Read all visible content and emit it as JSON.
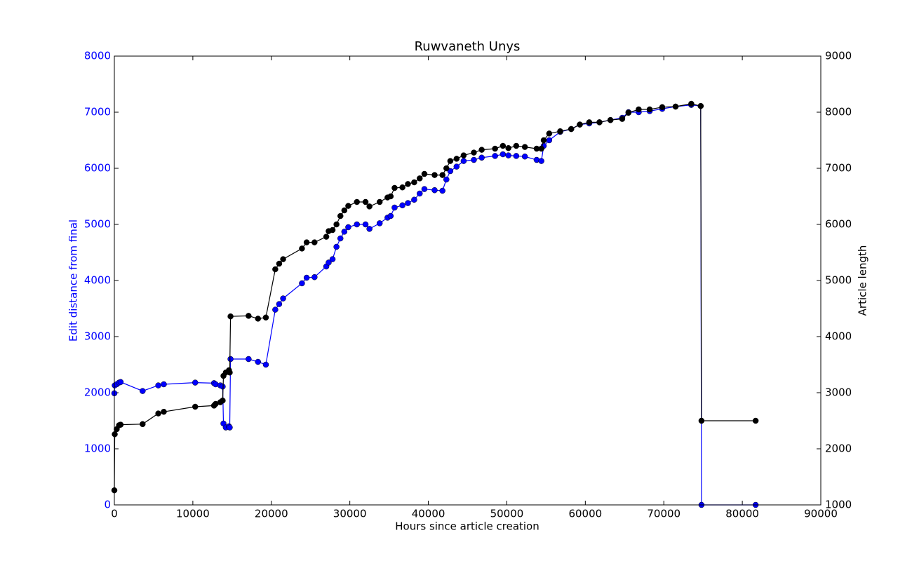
{
  "chart_data": {
    "type": "line",
    "title": "Ruwvaneth Unys",
    "xlabel": "Hours since article creation",
    "ylabel": "Edit distance from final",
    "y2label": "Article length",
    "x": [
      0,
      50,
      300,
      600,
      800,
      3600,
      5600,
      6300,
      10300,
      12700,
      12900,
      13500,
      13800,
      13900,
      14200,
      14600,
      14700,
      14800,
      17100,
      18300,
      19300,
      20500,
      21000,
      21500,
      23900,
      24500,
      25500,
      27000,
      27300,
      27800,
      28300,
      28800,
      29300,
      29800,
      30900,
      32000,
      32500,
      33800,
      34800,
      35200,
      35700,
      36700,
      37400,
      38200,
      38900,
      39500,
      40800,
      41800,
      42300,
      42800,
      43600,
      44500,
      45800,
      46800,
      48500,
      49500,
      50200,
      51200,
      52300,
      53800,
      54400,
      54700,
      55400,
      56800,
      58200,
      59300,
      60500,
      61800,
      63200,
      64700,
      65500,
      66800,
      68200,
      69800,
      71500,
      73500,
      74700,
      74800,
      81700
    ],
    "series": [
      {
        "name": "Edit distance from final",
        "color": "#0000ff",
        "axis": "y",
        "values": [
          1990,
          2130,
          2150,
          2180,
          2190,
          2030,
          2130,
          2150,
          2180,
          2170,
          2150,
          2130,
          2110,
          1450,
          1380,
          1400,
          1380,
          2600,
          2600,
          2550,
          2500,
          3480,
          3580,
          3680,
          3950,
          4050,
          4060,
          4250,
          4320,
          4380,
          4600,
          4750,
          4870,
          4950,
          5000,
          5000,
          4920,
          5020,
          5120,
          5150,
          5300,
          5340,
          5380,
          5440,
          5550,
          5630,
          5610,
          5600,
          5800,
          5950,
          6030,
          6130,
          6150,
          6190,
          6220,
          6250,
          6230,
          6220,
          6210,
          6150,
          6130,
          6400,
          6500,
          6650,
          6700,
          6780,
          6800,
          6820,
          6860,
          6900,
          7000,
          7000,
          7020,
          7060,
          7100,
          7130,
          7110,
          0,
          0
        ]
      },
      {
        "name": "Article length",
        "color": "#000000",
        "axis": "y2",
        "values": [
          1260,
          2260,
          2350,
          2420,
          2430,
          2440,
          2630,
          2660,
          2750,
          2770,
          2800,
          2830,
          2860,
          3300,
          3360,
          3400,
          3360,
          4360,
          4370,
          4320,
          4340,
          5200,
          5300,
          5380,
          5570,
          5680,
          5680,
          5780,
          5880,
          5900,
          6000,
          6150,
          6250,
          6330,
          6400,
          6400,
          6320,
          6400,
          6480,
          6500,
          6650,
          6660,
          6720,
          6750,
          6820,
          6900,
          6880,
          6880,
          7000,
          7130,
          7170,
          7230,
          7280,
          7330,
          7350,
          7400,
          7360,
          7400,
          7380,
          7350,
          7350,
          7500,
          7620,
          7660,
          7700,
          7780,
          7820,
          7820,
          7860,
          7880,
          7990,
          8050,
          8050,
          8090,
          8100,
          8150,
          8110,
          2500,
          2500
        ]
      }
    ],
    "xlim": [
      0,
      90000
    ],
    "xticks": [
      0,
      10000,
      20000,
      30000,
      40000,
      50000,
      60000,
      70000,
      80000,
      90000
    ],
    "ylim": [
      0,
      8000
    ],
    "yticks": [
      0,
      1000,
      2000,
      3000,
      4000,
      5000,
      6000,
      7000,
      8000
    ],
    "y2lim": [
      1000,
      9000
    ],
    "y2ticks": [
      1000,
      2000,
      3000,
      4000,
      5000,
      6000,
      7000,
      8000,
      9000
    ]
  }
}
